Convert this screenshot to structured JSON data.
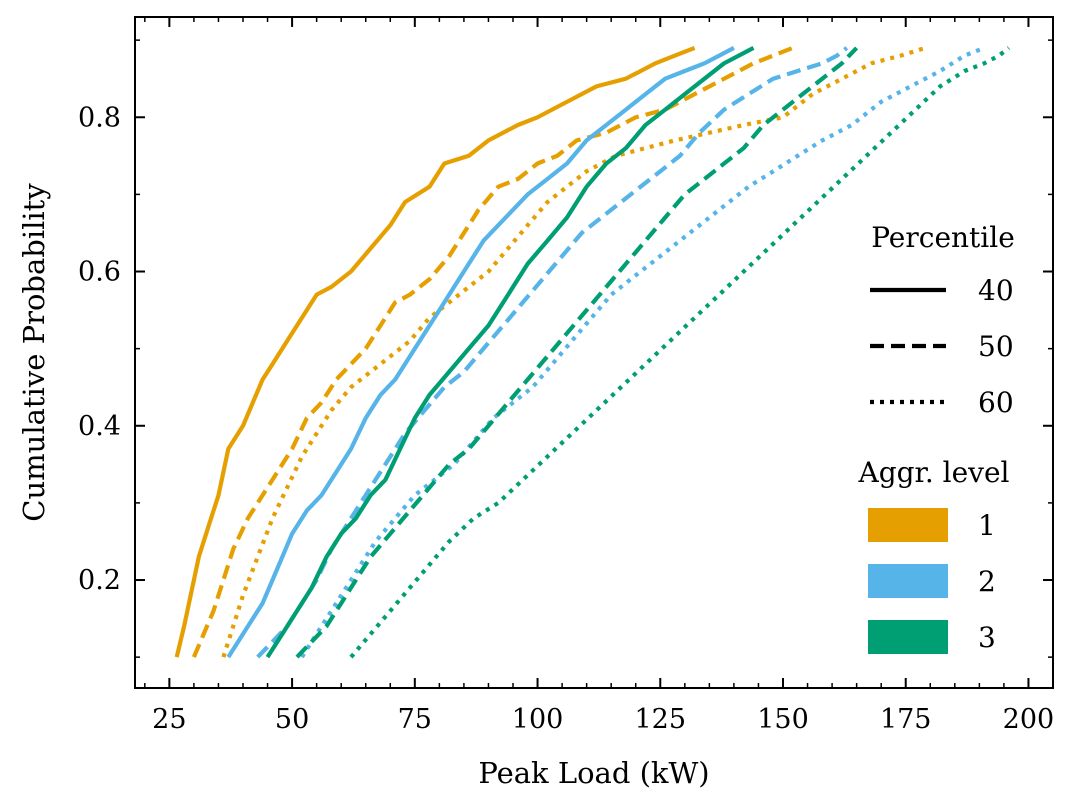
{
  "chart_data": {
    "type": "line",
    "title": "",
    "xlabel": "Peak Load (kW)",
    "ylabel": "Cumulative Probability",
    "xlim": [
      18,
      205
    ],
    "ylim": [
      0.06,
      0.93
    ],
    "xticks": [
      25,
      50,
      75,
      100,
      125,
      150,
      175,
      200
    ],
    "yticks": [
      0.2,
      0.4,
      0.6,
      0.8
    ],
    "xtick_labels": [
      "25",
      "50",
      "75",
      "100",
      "125",
      "150",
      "175",
      "200"
    ],
    "ytick_labels": [
      "0.2",
      "0.4",
      "0.6",
      "0.8"
    ],
    "grid": false,
    "legend": {
      "placement": "right",
      "linestyle_title": "Percentile",
      "linestyle_entries": [
        {
          "label": "40",
          "style": "solid"
        },
        {
          "label": "50",
          "style": "dashed"
        },
        {
          "label": "60",
          "style": "dotted"
        }
      ],
      "color_title": "Aggr. level",
      "color_entries": [
        {
          "label": "1",
          "color": "#E69F00"
        },
        {
          "label": "2",
          "color": "#56B4E9"
        },
        {
          "label": "3",
          "color": "#009E73"
        }
      ]
    },
    "series": [
      {
        "aggr": "1",
        "percentile": "40",
        "color": "#E69F00",
        "style": "solid",
        "points": [
          [
            26.5,
            0.1
          ],
          [
            28,
            0.14
          ],
          [
            29,
            0.17
          ],
          [
            31,
            0.23
          ],
          [
            33,
            0.27
          ],
          [
            35,
            0.31
          ],
          [
            37,
            0.37
          ],
          [
            40,
            0.4
          ],
          [
            42,
            0.43
          ],
          [
            44,
            0.46
          ],
          [
            46,
            0.48
          ],
          [
            49,
            0.51
          ],
          [
            51,
            0.53
          ],
          [
            53,
            0.55
          ],
          [
            55,
            0.57
          ],
          [
            58,
            0.58
          ],
          [
            62,
            0.6
          ],
          [
            66,
            0.63
          ],
          [
            70,
            0.66
          ],
          [
            73,
            0.69
          ],
          [
            78,
            0.71
          ],
          [
            81,
            0.74
          ],
          [
            86,
            0.75
          ],
          [
            90,
            0.77
          ],
          [
            96,
            0.79
          ],
          [
            100,
            0.8
          ],
          [
            106,
            0.82
          ],
          [
            112,
            0.84
          ],
          [
            118,
            0.85
          ],
          [
            124,
            0.87
          ],
          [
            128,
            0.88
          ],
          [
            132,
            0.89
          ]
        ]
      },
      {
        "aggr": "1",
        "percentile": "50",
        "color": "#E69F00",
        "style": "dashed",
        "points": [
          [
            30,
            0.1
          ],
          [
            32,
            0.13
          ],
          [
            34,
            0.16
          ],
          [
            36,
            0.2
          ],
          [
            38,
            0.24
          ],
          [
            41,
            0.28
          ],
          [
            44,
            0.31
          ],
          [
            47,
            0.34
          ],
          [
            50,
            0.37
          ],
          [
            53,
            0.41
          ],
          [
            56,
            0.43
          ],
          [
            59,
            0.46
          ],
          [
            62,
            0.48
          ],
          [
            65,
            0.5
          ],
          [
            68,
            0.53
          ],
          [
            71,
            0.56
          ],
          [
            74,
            0.57
          ],
          [
            78,
            0.59
          ],
          [
            82,
            0.62
          ],
          [
            85,
            0.65
          ],
          [
            88,
            0.68
          ],
          [
            92,
            0.71
          ],
          [
            96,
            0.72
          ],
          [
            100,
            0.74
          ],
          [
            104,
            0.75
          ],
          [
            108,
            0.77
          ],
          [
            114,
            0.78
          ],
          [
            120,
            0.8
          ],
          [
            126,
            0.81
          ],
          [
            132,
            0.83
          ],
          [
            138,
            0.85
          ],
          [
            144,
            0.87
          ],
          [
            148,
            0.88
          ],
          [
            152,
            0.89
          ]
        ]
      },
      {
        "aggr": "1",
        "percentile": "60",
        "color": "#E69F00",
        "style": "dotted",
        "points": [
          [
            36,
            0.1
          ],
          [
            38,
            0.14
          ],
          [
            40,
            0.18
          ],
          [
            43,
            0.23
          ],
          [
            46,
            0.28
          ],
          [
            49,
            0.32
          ],
          [
            52,
            0.36
          ],
          [
            55,
            0.39
          ],
          [
            58,
            0.42
          ],
          [
            62,
            0.45
          ],
          [
            66,
            0.47
          ],
          [
            70,
            0.49
          ],
          [
            74,
            0.51
          ],
          [
            78,
            0.54
          ],
          [
            82,
            0.56
          ],
          [
            86,
            0.58
          ],
          [
            90,
            0.6
          ],
          [
            94,
            0.63
          ],
          [
            98,
            0.66
          ],
          [
            102,
            0.69
          ],
          [
            106,
            0.71
          ],
          [
            110,
            0.73
          ],
          [
            116,
            0.75
          ],
          [
            122,
            0.76
          ],
          [
            128,
            0.77
          ],
          [
            135,
            0.78
          ],
          [
            142,
            0.79
          ],
          [
            150,
            0.8
          ],
          [
            156,
            0.83
          ],
          [
            162,
            0.85
          ],
          [
            168,
            0.87
          ],
          [
            174,
            0.88
          ],
          [
            179,
            0.89
          ]
        ]
      },
      {
        "aggr": "2",
        "percentile": "40",
        "color": "#56B4E9",
        "style": "solid",
        "points": [
          [
            37,
            0.1
          ],
          [
            39,
            0.12
          ],
          [
            41,
            0.14
          ],
          [
            44,
            0.17
          ],
          [
            46,
            0.2
          ],
          [
            48,
            0.23
          ],
          [
            50,
            0.26
          ],
          [
            53,
            0.29
          ],
          [
            56,
            0.31
          ],
          [
            59,
            0.34
          ],
          [
            62,
            0.37
          ],
          [
            65,
            0.41
          ],
          [
            68,
            0.44
          ],
          [
            71,
            0.46
          ],
          [
            74,
            0.49
          ],
          [
            77,
            0.52
          ],
          [
            80,
            0.55
          ],
          [
            83,
            0.58
          ],
          [
            86,
            0.61
          ],
          [
            89,
            0.64
          ],
          [
            92,
            0.66
          ],
          [
            95,
            0.68
          ],
          [
            98,
            0.7
          ],
          [
            102,
            0.72
          ],
          [
            106,
            0.74
          ],
          [
            110,
            0.77
          ],
          [
            114,
            0.79
          ],
          [
            118,
            0.81
          ],
          [
            122,
            0.83
          ],
          [
            126,
            0.85
          ],
          [
            130,
            0.86
          ],
          [
            134,
            0.87
          ],
          [
            137,
            0.88
          ],
          [
            140,
            0.89
          ]
        ]
      },
      {
        "aggr": "2",
        "percentile": "50",
        "color": "#56B4E9",
        "style": "dashed",
        "points": [
          [
            43,
            0.1
          ],
          [
            46,
            0.12
          ],
          [
            49,
            0.14
          ],
          [
            52,
            0.17
          ],
          [
            55,
            0.2
          ],
          [
            58,
            0.24
          ],
          [
            61,
            0.27
          ],
          [
            64,
            0.3
          ],
          [
            67,
            0.33
          ],
          [
            70,
            0.36
          ],
          [
            73,
            0.39
          ],
          [
            77,
            0.42
          ],
          [
            81,
            0.45
          ],
          [
            85,
            0.47
          ],
          [
            89,
            0.5
          ],
          [
            93,
            0.53
          ],
          [
            97,
            0.56
          ],
          [
            101,
            0.59
          ],
          [
            105,
            0.62
          ],
          [
            109,
            0.65
          ],
          [
            113,
            0.67
          ],
          [
            117,
            0.69
          ],
          [
            121,
            0.71
          ],
          [
            125,
            0.73
          ],
          [
            129,
            0.75
          ],
          [
            133,
            0.78
          ],
          [
            138,
            0.81
          ],
          [
            143,
            0.83
          ],
          [
            148,
            0.85
          ],
          [
            153,
            0.86
          ],
          [
            158,
            0.87
          ],
          [
            161,
            0.88
          ],
          [
            163,
            0.89
          ]
        ]
      },
      {
        "aggr": "2",
        "percentile": "60",
        "color": "#56B4E9",
        "style": "dotted",
        "points": [
          [
            52,
            0.1
          ],
          [
            55,
            0.13
          ],
          [
            58,
            0.16
          ],
          [
            61,
            0.19
          ],
          [
            64,
            0.22
          ],
          [
            67,
            0.25
          ],
          [
            71,
            0.28
          ],
          [
            75,
            0.31
          ],
          [
            79,
            0.33
          ],
          [
            83,
            0.35
          ],
          [
            87,
            0.38
          ],
          [
            91,
            0.41
          ],
          [
            95,
            0.43
          ],
          [
            99,
            0.45
          ],
          [
            103,
            0.48
          ],
          [
            107,
            0.51
          ],
          [
            111,
            0.54
          ],
          [
            115,
            0.57
          ],
          [
            119,
            0.59
          ],
          [
            123,
            0.61
          ],
          [
            127,
            0.63
          ],
          [
            131,
            0.65
          ],
          [
            135,
            0.67
          ],
          [
            139,
            0.69
          ],
          [
            143,
            0.71
          ],
          [
            148,
            0.73
          ],
          [
            153,
            0.75
          ],
          [
            158,
            0.77
          ],
          [
            164,
            0.79
          ],
          [
            170,
            0.82
          ],
          [
            176,
            0.84
          ],
          [
            182,
            0.86
          ],
          [
            187,
            0.88
          ],
          [
            191,
            0.89
          ]
        ]
      },
      {
        "aggr": "3",
        "percentile": "40",
        "color": "#009E73",
        "style": "solid",
        "points": [
          [
            45,
            0.1
          ],
          [
            48,
            0.13
          ],
          [
            51,
            0.16
          ],
          [
            54,
            0.19
          ],
          [
            57,
            0.23
          ],
          [
            60,
            0.26
          ],
          [
            63,
            0.28
          ],
          [
            66,
            0.31
          ],
          [
            69,
            0.33
          ],
          [
            72,
            0.37
          ],
          [
            75,
            0.41
          ],
          [
            78,
            0.44
          ],
          [
            82,
            0.47
          ],
          [
            86,
            0.5
          ],
          [
            90,
            0.53
          ],
          [
            94,
            0.57
          ],
          [
            98,
            0.61
          ],
          [
            102,
            0.64
          ],
          [
            106,
            0.67
          ],
          [
            110,
            0.71
          ],
          [
            114,
            0.74
          ],
          [
            118,
            0.76
          ],
          [
            122,
            0.79
          ],
          [
            126,
            0.81
          ],
          [
            130,
            0.83
          ],
          [
            134,
            0.85
          ],
          [
            138,
            0.87
          ],
          [
            141,
            0.88
          ],
          [
            144,
            0.89
          ]
        ]
      },
      {
        "aggr": "3",
        "percentile": "50",
        "color": "#009E73",
        "style": "dashed",
        "points": [
          [
            51,
            0.1
          ],
          [
            54,
            0.12
          ],
          [
            57,
            0.14
          ],
          [
            60,
            0.17
          ],
          [
            63,
            0.2
          ],
          [
            66,
            0.23
          ],
          [
            70,
            0.26
          ],
          [
            74,
            0.29
          ],
          [
            78,
            0.32
          ],
          [
            82,
            0.35
          ],
          [
            86,
            0.37
          ],
          [
            90,
            0.4
          ],
          [
            94,
            0.43
          ],
          [
            98,
            0.46
          ],
          [
            102,
            0.49
          ],
          [
            106,
            0.52
          ],
          [
            110,
            0.55
          ],
          [
            114,
            0.58
          ],
          [
            118,
            0.61
          ],
          [
            122,
            0.64
          ],
          [
            126,
            0.67
          ],
          [
            130,
            0.7
          ],
          [
            134,
            0.72
          ],
          [
            138,
            0.74
          ],
          [
            142,
            0.76
          ],
          [
            146,
            0.79
          ],
          [
            150,
            0.81
          ],
          [
            154,
            0.83
          ],
          [
            158,
            0.85
          ],
          [
            162,
            0.87
          ],
          [
            165,
            0.89
          ]
        ]
      },
      {
        "aggr": "3",
        "percentile": "60",
        "color": "#009E73",
        "style": "dotted",
        "points": [
          [
            62,
            0.1
          ],
          [
            66,
            0.13
          ],
          [
            70,
            0.16
          ],
          [
            74,
            0.19
          ],
          [
            78,
            0.22
          ],
          [
            82,
            0.25
          ],
          [
            87,
            0.28
          ],
          [
            92,
            0.3
          ],
          [
            97,
            0.33
          ],
          [
            102,
            0.36
          ],
          [
            107,
            0.39
          ],
          [
            112,
            0.42
          ],
          [
            117,
            0.45
          ],
          [
            122,
            0.48
          ],
          [
            127,
            0.51
          ],
          [
            132,
            0.54
          ],
          [
            137,
            0.57
          ],
          [
            142,
            0.6
          ],
          [
            147,
            0.63
          ],
          [
            152,
            0.66
          ],
          [
            157,
            0.69
          ],
          [
            162,
            0.72
          ],
          [
            167,
            0.75
          ],
          [
            172,
            0.78
          ],
          [
            177,
            0.81
          ],
          [
            182,
            0.84
          ],
          [
            187,
            0.86
          ],
          [
            191,
            0.87
          ],
          [
            194,
            0.88
          ],
          [
            196,
            0.89
          ]
        ]
      }
    ]
  }
}
